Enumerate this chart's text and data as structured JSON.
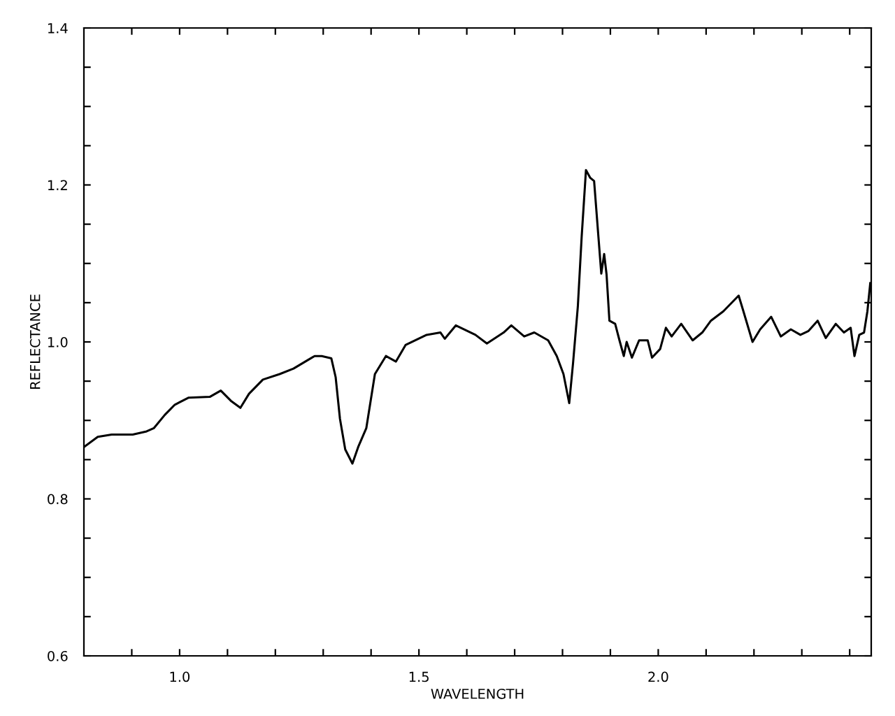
{
  "chart_data": {
    "type": "line",
    "xlabel": "WAVELENGTH",
    "ylabel": "REFLECTANCE",
    "color": "#000000",
    "grid": false,
    "legend": false,
    "marker": "none",
    "line_style": "solid",
    "xlim": [
      0.8,
      2.445
    ],
    "ylim": [
      0.6,
      1.4
    ],
    "xticks": [
      {
        "value": 0.9,
        "label": null
      },
      {
        "value": 1.0,
        "label": "1.0"
      },
      {
        "value": 1.1,
        "label": null
      },
      {
        "value": 1.2,
        "label": null
      },
      {
        "value": 1.3,
        "label": null
      },
      {
        "value": 1.4,
        "label": null
      },
      {
        "value": 1.5,
        "label": "1.5"
      },
      {
        "value": 1.6,
        "label": null
      },
      {
        "value": 1.7,
        "label": null
      },
      {
        "value": 1.8,
        "label": null
      },
      {
        "value": 1.9,
        "label": null
      },
      {
        "value": 2.0,
        "label": "2.0"
      },
      {
        "value": 2.1,
        "label": null
      },
      {
        "value": 2.2,
        "label": null
      },
      {
        "value": 2.3,
        "label": null
      },
      {
        "value": 2.4,
        "label": null
      }
    ],
    "yticks": [
      {
        "value": 0.6,
        "label": "0.6"
      },
      {
        "value": 0.65,
        "label": null
      },
      {
        "value": 0.7,
        "label": null
      },
      {
        "value": 0.75,
        "label": null
      },
      {
        "value": 0.8,
        "label": "0.8"
      },
      {
        "value": 0.85,
        "label": null
      },
      {
        "value": 0.9,
        "label": null
      },
      {
        "value": 0.95,
        "label": null
      },
      {
        "value": 1.0,
        "label": "1.0"
      },
      {
        "value": 1.05,
        "label": null
      },
      {
        "value": 1.1,
        "label": null
      },
      {
        "value": 1.15,
        "label": null
      },
      {
        "value": 1.2,
        "label": "1.2"
      },
      {
        "value": 1.25,
        "label": null
      },
      {
        "value": 1.3,
        "label": null
      },
      {
        "value": 1.35,
        "label": null
      },
      {
        "value": 1.4,
        "label": "1.4"
      }
    ],
    "x": [
      0.8,
      0.829,
      0.858,
      0.902,
      0.931,
      0.946,
      0.969,
      0.99,
      1.019,
      1.063,
      1.086,
      1.107,
      1.127,
      1.145,
      1.174,
      1.209,
      1.238,
      1.268,
      1.282,
      1.297,
      1.317,
      1.326,
      1.335,
      1.346,
      1.361,
      1.373,
      1.39,
      1.408,
      1.431,
      1.452,
      1.472,
      1.516,
      1.545,
      1.554,
      1.577,
      1.618,
      1.642,
      1.677,
      1.693,
      1.72,
      1.741,
      1.77,
      1.788,
      1.802,
      1.814,
      1.822,
      1.832,
      1.84,
      1.849,
      1.858,
      1.866,
      1.875,
      1.881,
      1.887,
      1.892,
      1.898,
      1.91,
      1.919,
      1.928,
      1.934,
      1.945,
      1.96,
      1.978,
      1.987,
      2.004,
      2.016,
      2.028,
      2.048,
      2.072,
      2.092,
      2.11,
      2.136,
      2.168,
      2.177,
      2.197,
      2.213,
      2.236,
      2.256,
      2.277,
      2.297,
      2.314,
      2.333,
      2.35,
      2.371,
      2.388,
      2.402,
      2.41,
      2.42,
      2.43,
      2.437,
      2.443
    ],
    "values": [
      0.866,
      0.879,
      0.882,
      0.882,
      0.886,
      0.89,
      0.907,
      0.92,
      0.929,
      0.93,
      0.938,
      0.925,
      0.916,
      0.934,
      0.952,
      0.959,
      0.966,
      0.977,
      0.982,
      0.982,
      0.979,
      0.955,
      0.902,
      0.863,
      0.845,
      0.866,
      0.89,
      0.959,
      0.982,
      0.975,
      0.996,
      1.009,
      1.012,
      1.004,
      1.021,
      1.009,
      0.998,
      1.012,
      1.021,
      1.007,
      1.012,
      1.002,
      0.982,
      0.959,
      0.922,
      0.973,
      1.045,
      1.134,
      1.219,
      1.209,
      1.205,
      1.134,
      1.087,
      1.112,
      1.086,
      1.027,
      1.023,
      1.002,
      0.982,
      1.0,
      0.98,
      1.002,
      1.002,
      0.98,
      0.991,
      1.018,
      1.007,
      1.023,
      1.002,
      1.012,
      1.027,
      1.039,
      1.059,
      1.041,
      1.0,
      1.016,
      1.032,
      1.007,
      1.016,
      1.009,
      1.014,
      1.027,
      1.005,
      1.023,
      1.012,
      1.018,
      0.982,
      1.009,
      1.012,
      1.039,
      1.075
    ]
  }
}
